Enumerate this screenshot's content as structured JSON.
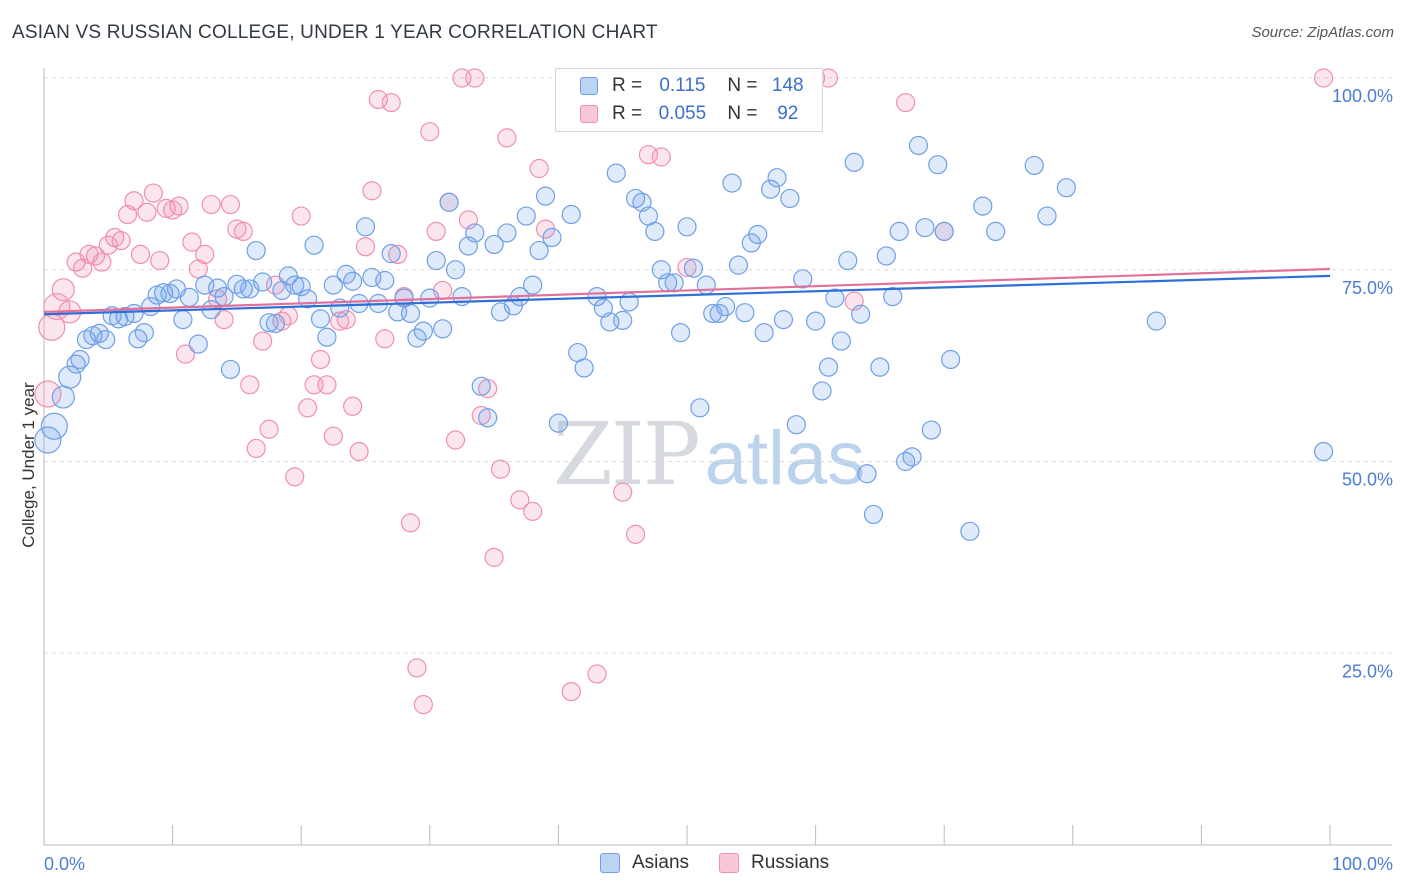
{
  "header": {
    "title": "ASIAN VS RUSSIAN COLLEGE, UNDER 1 YEAR CORRELATION CHART",
    "source": "Source: ZipAtlas.com"
  },
  "watermark": {
    "zip": "ZIP",
    "atlas": "atlas"
  },
  "legend": {
    "rows": [
      {
        "r_label": "R =",
        "r_value": "0.115",
        "n_label": "N =",
        "n_value": "148",
        "color": "#6fa0e6"
      },
      {
        "r_label": "R =",
        "r_value": "0.055",
        "n_label": "N =",
        "n_value": "92",
        "color": "#f08fb0"
      }
    ]
  },
  "bottom_legend": {
    "asians": "Asians",
    "russians": "Russians"
  },
  "chart_data": {
    "type": "scatter",
    "title": "ASIAN VS RUSSIAN COLLEGE, UNDER 1 YEAR CORRELATION CHART",
    "ylabel": "College, Under 1 year",
    "xlabel": "",
    "xlim": [
      0,
      100
    ],
    "ylim": [
      0,
      100
    ],
    "x_tick_labels": [
      "0.0%",
      "100.0%"
    ],
    "y_ticks": [
      25,
      50,
      75,
      100
    ],
    "y_tick_labels": [
      "25.0%",
      "50.0%",
      "75.0%",
      "100.0%"
    ],
    "grid": "horizontal dashed",
    "legend_position": "top-center",
    "series": [
      {
        "name": "Asians",
        "color": "#6fa0e6",
        "trend": [
          [
            0,
            69.2
          ],
          [
            100,
            74.2
          ]
        ],
        "points": [
          [
            0.3,
            52.8
          ],
          [
            0.8,
            54.6
          ],
          [
            1.5,
            58.4
          ],
          [
            2,
            61
          ],
          [
            2.5,
            62.7
          ],
          [
            2.8,
            63.3
          ],
          [
            3.3,
            65.9
          ],
          [
            3.8,
            66.4
          ],
          [
            4.3,
            66.7
          ],
          [
            4.8,
            65.9
          ],
          [
            5.3,
            69
          ],
          [
            5.8,
            68.6
          ],
          [
            6.3,
            68.9
          ],
          [
            7,
            69.3
          ],
          [
            7.3,
            66
          ],
          [
            7.8,
            66.8
          ],
          [
            8.3,
            70.2
          ],
          [
            8.8,
            71.7
          ],
          [
            9.3,
            72
          ],
          [
            9.8,
            71.9
          ],
          [
            10.3,
            72.5
          ],
          [
            10.8,
            68.5
          ],
          [
            11.3,
            71.4
          ],
          [
            12,
            65.3
          ],
          [
            12.5,
            73
          ],
          [
            13,
            69.8
          ],
          [
            13.5,
            72.6
          ],
          [
            14,
            71.5
          ],
          [
            14.5,
            62
          ],
          [
            15,
            73.1
          ],
          [
            15.5,
            72.5
          ],
          [
            16,
            72.5
          ],
          [
            16.5,
            77.5
          ],
          [
            17,
            73.4
          ],
          [
            17.5,
            68.1
          ],
          [
            18,
            68
          ],
          [
            18.5,
            72.3
          ],
          [
            19,
            74.2
          ],
          [
            19.5,
            73
          ],
          [
            20,
            72.8
          ],
          [
            20.5,
            71.2
          ],
          [
            21,
            78.2
          ],
          [
            21.5,
            68.6
          ],
          [
            22,
            66.2
          ],
          [
            22.5,
            73
          ],
          [
            23,
            70
          ],
          [
            23.5,
            74.4
          ],
          [
            24,
            73.5
          ],
          [
            24.5,
            70.6
          ],
          [
            25,
            80.6
          ],
          [
            25.5,
            74
          ],
          [
            26,
            70.6
          ],
          [
            26.5,
            73.6
          ],
          [
            27,
            77.1
          ],
          [
            27.5,
            69.5
          ],
          [
            28,
            71.3
          ],
          [
            28.5,
            69.3
          ],
          [
            29,
            66.1
          ],
          [
            29.5,
            67
          ],
          [
            30,
            71.3
          ],
          [
            30.5,
            76.2
          ],
          [
            31,
            67.3
          ],
          [
            31.5,
            83.8
          ],
          [
            32,
            75
          ],
          [
            32.5,
            71.5
          ],
          [
            33,
            78.1
          ],
          [
            33.5,
            79.8
          ],
          [
            34,
            59.8
          ],
          [
            34.5,
            55.7
          ],
          [
            35,
            78.3
          ],
          [
            35.5,
            69.5
          ],
          [
            36,
            79.8
          ],
          [
            36.5,
            70.3
          ],
          [
            37,
            71.5
          ],
          [
            37.5,
            82
          ],
          [
            38,
            73
          ],
          [
            38.5,
            77.5
          ],
          [
            39,
            84.6
          ],
          [
            39.5,
            79.2
          ],
          [
            40,
            55
          ],
          [
            41,
            82.2
          ],
          [
            41.5,
            64.2
          ],
          [
            42,
            62.2
          ],
          [
            43,
            71.5
          ],
          [
            43.5,
            70
          ],
          [
            44,
            68.2
          ],
          [
            44.5,
            87.6
          ],
          [
            45,
            68.4
          ],
          [
            45.5,
            70.8
          ],
          [
            46,
            84.3
          ],
          [
            46.5,
            83.8
          ],
          [
            47,
            82
          ],
          [
            47.5,
            80
          ],
          [
            48,
            75
          ],
          [
            48.5,
            73.3
          ],
          [
            49,
            73.3
          ],
          [
            49.5,
            66.8
          ],
          [
            50,
            80.6
          ],
          [
            50.5,
            75.2
          ],
          [
            51,
            57
          ],
          [
            51.5,
            73
          ],
          [
            52,
            69.3
          ],
          [
            52.5,
            69.3
          ],
          [
            53,
            70.2
          ],
          [
            53.5,
            86.3
          ],
          [
            54,
            75.6
          ],
          [
            54.5,
            69.4
          ],
          [
            55,
            78.5
          ],
          [
            55.5,
            79.6
          ],
          [
            56,
            66.8
          ],
          [
            56.5,
            85.5
          ],
          [
            57,
            87
          ],
          [
            57.5,
            68.5
          ],
          [
            58,
            84.3
          ],
          [
            58.5,
            54.8
          ],
          [
            59,
            73.8
          ],
          [
            60,
            68.3
          ],
          [
            60.5,
            59.2
          ],
          [
            61,
            62.3
          ],
          [
            61.5,
            71.3
          ],
          [
            62,
            65.7
          ],
          [
            62.5,
            76.2
          ],
          [
            63,
            89
          ],
          [
            63.5,
            69.2
          ],
          [
            64,
            48.4
          ],
          [
            64.5,
            43.1
          ],
          [
            65,
            62.3
          ],
          [
            65.5,
            76.8
          ],
          [
            66,
            71.5
          ],
          [
            66.5,
            80
          ],
          [
            67,
            50
          ],
          [
            67.5,
            50.6
          ],
          [
            68,
            91.2
          ],
          [
            68.5,
            80.5
          ],
          [
            69,
            54.1
          ],
          [
            69.5,
            88.7
          ],
          [
            70,
            80
          ],
          [
            70.5,
            63.3
          ],
          [
            72,
            40.9
          ],
          [
            73,
            83.3
          ],
          [
            74,
            80
          ],
          [
            77,
            88.6
          ],
          [
            78,
            82
          ],
          [
            79.5,
            85.7
          ],
          [
            86.5,
            68.3
          ],
          [
            99.5,
            51.3
          ]
        ]
      },
      {
        "name": "Russians",
        "color": "#f08fb0",
        "trend": [
          [
            0,
            69.5
          ],
          [
            100,
            75.1
          ]
        ],
        "points": [
          [
            0.3,
            58.8
          ],
          [
            0.6,
            67.5
          ],
          [
            1,
            70.2
          ],
          [
            1.5,
            72.4
          ],
          [
            2,
            69.5
          ],
          [
            2.5,
            76
          ],
          [
            3,
            75.2
          ],
          [
            3.5,
            77
          ],
          [
            4,
            76.8
          ],
          [
            4.5,
            76
          ],
          [
            5,
            78.2
          ],
          [
            5.5,
            79.2
          ],
          [
            6,
            78.8
          ],
          [
            6.5,
            82.2
          ],
          [
            7,
            84
          ],
          [
            7.5,
            77
          ],
          [
            8,
            82.5
          ],
          [
            8.5,
            85
          ],
          [
            9,
            76.2
          ],
          [
            9.5,
            83
          ],
          [
            10,
            82.8
          ],
          [
            10.5,
            83.3
          ],
          [
            11,
            64
          ],
          [
            11.5,
            78.6
          ],
          [
            12,
            75.1
          ],
          [
            12.5,
            77
          ],
          [
            13,
            83.5
          ],
          [
            13.5,
            71.2
          ],
          [
            14,
            68.5
          ],
          [
            14.5,
            83.5
          ],
          [
            15,
            80.3
          ],
          [
            15.5,
            80
          ],
          [
            16,
            60
          ],
          [
            16.5,
            51.7
          ],
          [
            17,
            65.7
          ],
          [
            17.5,
            54.2
          ],
          [
            18,
            73
          ],
          [
            18.5,
            68.3
          ],
          [
            19,
            69
          ],
          [
            19.5,
            48
          ],
          [
            20,
            82
          ],
          [
            20.5,
            57
          ],
          [
            21,
            60
          ],
          [
            21.5,
            63.3
          ],
          [
            22,
            60
          ],
          [
            22.5,
            53.3
          ],
          [
            23,
            68.3
          ],
          [
            23.5,
            68.5
          ],
          [
            24,
            57.2
          ],
          [
            24.5,
            51.3
          ],
          [
            25,
            78
          ],
          [
            25.5,
            85.3
          ],
          [
            26,
            97.2
          ],
          [
            26.5,
            66
          ],
          [
            27,
            96.8
          ],
          [
            27.5,
            77
          ],
          [
            28,
            71.5
          ],
          [
            28.5,
            42
          ],
          [
            29,
            23.1
          ],
          [
            29.5,
            18.3
          ],
          [
            30,
            93
          ],
          [
            30.5,
            80
          ],
          [
            31,
            72.3
          ],
          [
            31.5,
            83.8
          ],
          [
            32,
            52.8
          ],
          [
            32.5,
            100
          ],
          [
            33,
            81.5
          ],
          [
            33.5,
            100
          ],
          [
            34,
            56
          ],
          [
            34.5,
            59.5
          ],
          [
            35,
            37.5
          ],
          [
            35.5,
            49
          ],
          [
            36,
            92.2
          ],
          [
            37,
            45
          ],
          [
            38,
            43.5
          ],
          [
            38.5,
            88.2
          ],
          [
            39,
            80.3
          ],
          [
            41,
            20
          ],
          [
            43,
            22.3
          ],
          [
            45,
            46
          ],
          [
            46,
            40.5
          ],
          [
            47,
            90
          ],
          [
            48,
            89.7
          ],
          [
            50,
            75.3
          ],
          [
            60,
            100
          ],
          [
            61,
            100
          ],
          [
            63,
            70.9
          ],
          [
            67,
            96.8
          ],
          [
            70,
            80
          ],
          [
            99.5,
            100
          ]
        ]
      }
    ]
  }
}
